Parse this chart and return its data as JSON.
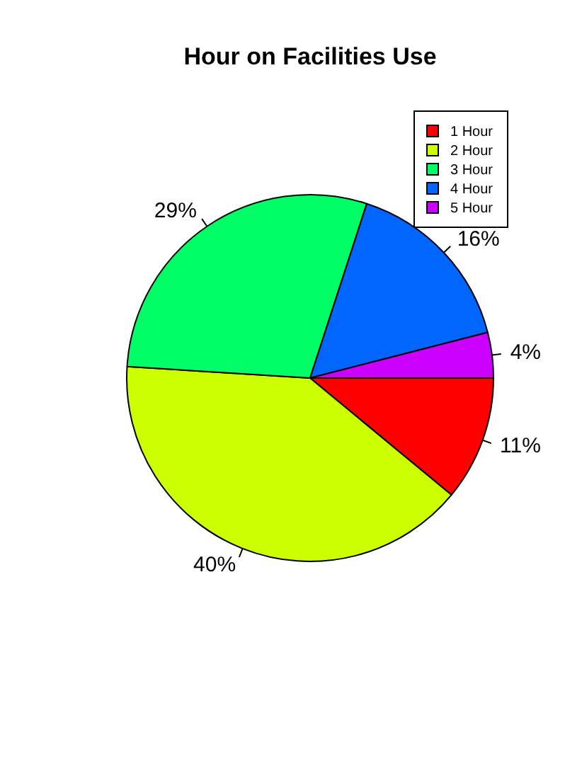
{
  "chart_data": {
    "type": "pie",
    "title": "Hour on Facilities Use",
    "categories": [
      "1 Hour",
      "2 Hour",
      "3 Hour",
      "4 Hour",
      "5 Hour"
    ],
    "values": [
      11,
      40,
      29,
      16,
      4
    ],
    "colors": [
      "#ff0000",
      "#ccff00",
      "#00ff66",
      "#0066ff",
      "#cc00ff"
    ],
    "value_labels": [
      "11%",
      "40%",
      "29%",
      "16%",
      "4%"
    ],
    "legend": "top right"
  }
}
